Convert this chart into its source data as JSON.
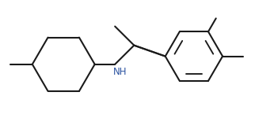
{
  "line_color": "#1a1a1a",
  "bg_color": "#ffffff",
  "nh_color": "#2a52a0",
  "line_width": 1.5,
  "fig_width": 3.46,
  "fig_height": 1.45,
  "dpi": 100
}
